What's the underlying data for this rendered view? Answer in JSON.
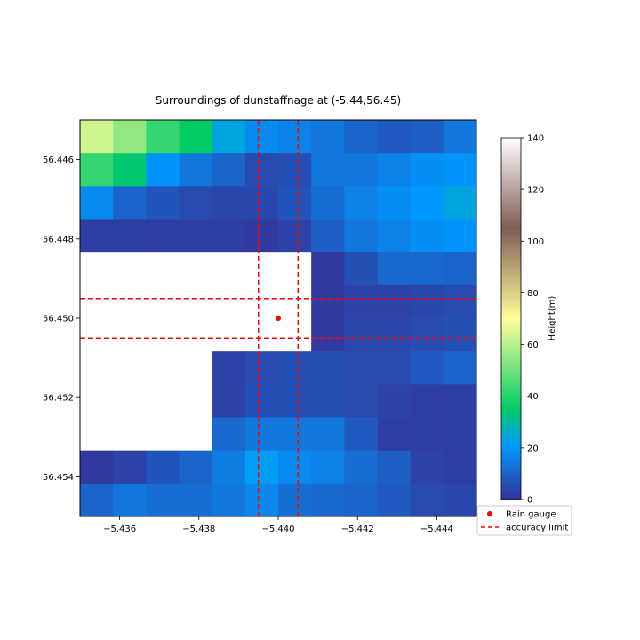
{
  "chart_data": {
    "type": "heatmap",
    "title": "Surroundings of dunstaffnage at (-5.44,56.45)",
    "x_ticks": [
      "−5.436",
      "−5.438",
      "−5.440",
      "−5.442",
      "−5.444"
    ],
    "x_tick_values": [
      -5.436,
      -5.438,
      -5.44,
      -5.442,
      -5.444
    ],
    "y_ticks": [
      "56.446",
      "56.448",
      "56.450",
      "56.452",
      "56.454"
    ],
    "y_tick_values": [
      56.446,
      56.448,
      56.45,
      56.452,
      56.454
    ],
    "xlim": [
      -5.435,
      -5.445
    ],
    "ylim": [
      56.455,
      56.445
    ],
    "grid_x_range": [
      -5.435,
      -5.445
    ],
    "grid_y_range": [
      56.445,
      56.455
    ],
    "cells": [
      [
        63,
        55,
        42,
        35,
        24,
        18,
        16,
        14,
        10,
        8,
        9,
        14
      ],
      [
        42,
        34,
        20,
        14,
        10,
        5,
        6,
        14,
        14,
        16,
        19,
        20
      ],
      [
        18,
        10,
        7,
        5,
        4,
        4,
        7,
        12,
        16,
        19,
        21,
        24
      ],
      [
        2,
        2,
        2,
        2,
        2,
        1,
        3,
        9,
        14,
        16,
        19,
        20
      ],
      [
        null,
        null,
        null,
        null,
        null,
        null,
        null,
        1,
        6,
        11,
        11,
        10
      ],
      [
        null,
        null,
        null,
        null,
        null,
        null,
        null,
        1,
        3,
        3,
        4,
        5
      ],
      [
        null,
        null,
        null,
        null,
        null,
        null,
        null,
        1,
        4,
        4,
        5,
        6
      ],
      [
        null,
        null,
        null,
        null,
        3,
        5,
        6,
        6,
        5,
        5,
        8,
        10
      ],
      [
        null,
        null,
        null,
        null,
        3,
        6,
        6,
        6,
        5,
        3,
        2,
        2
      ],
      [
        null,
        null,
        null,
        null,
        11,
        14,
        14,
        14,
        8,
        2,
        2,
        2
      ],
      [
        1,
        3,
        7,
        10,
        15,
        22,
        18,
        16,
        12,
        9,
        3,
        2
      ],
      [
        10,
        14,
        12,
        12,
        14,
        17,
        12,
        11,
        10,
        8,
        5,
        4
      ]
    ],
    "rain_gauge": {
      "x": -5.44,
      "y": 56.45
    },
    "accuracy_limit": {
      "x": [
        -5.4395,
        -5.4405
      ],
      "y": [
        56.4495,
        56.4505
      ]
    },
    "colorbar": {
      "label": "Height(m)",
      "min": 0,
      "max": 140,
      "ticks": [
        0,
        20,
        40,
        60,
        80,
        100,
        120,
        140
      ],
      "colormap": "terrain"
    },
    "legend": {
      "placement": "lower-right",
      "entries": [
        {
          "label": "Rain gauge",
          "marker": "dot",
          "color": "#ff0000"
        },
        {
          "label": "accuracy limit",
          "marker": "dashed-line",
          "color": "#ff0000"
        }
      ]
    },
    "grid": false
  }
}
